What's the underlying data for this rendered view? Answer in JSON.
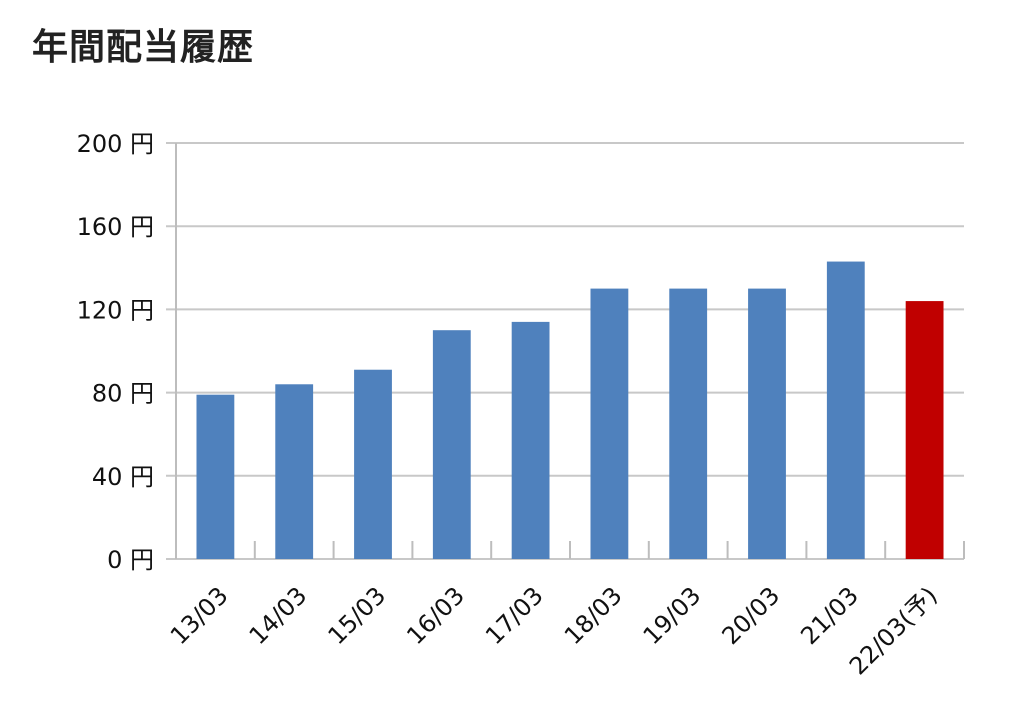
{
  "title": "年間配当履歴",
  "chart_data": {
    "type": "bar",
    "title": "年間配当履歴",
    "categories": [
      "13/03",
      "14/03",
      "15/03",
      "16/03",
      "17/03",
      "18/03",
      "19/03",
      "20/03",
      "21/03",
      "22/03(予)"
    ],
    "values": [
      79,
      84,
      91,
      110,
      114,
      130,
      130,
      130,
      143,
      124
    ],
    "ylim": [
      0,
      200
    ],
    "yticks": [
      0,
      40,
      80,
      120,
      160,
      200
    ],
    "yunit": "円",
    "xlabel": "",
    "ylabel": "",
    "grid": true,
    "colors": {
      "actual": "#4F81BD",
      "forecast": "#C00000",
      "grid": "#C8C8C8",
      "axis": "#BDBDBD"
    },
    "forecast_index": 9
  }
}
